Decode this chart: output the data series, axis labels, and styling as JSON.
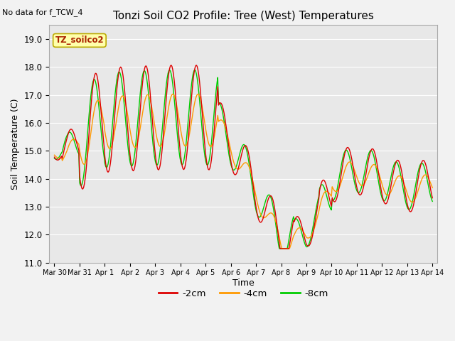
{
  "title": "Tonzi Soil CO2 Profile: Tree (West) Temperatures",
  "xlabel": "Time",
  "ylabel": "Soil Temperature (C)",
  "no_data_label": "No data for f_TCW_4",
  "site_label": "TZ_soilco2",
  "ylim": [
    11.0,
    19.5
  ],
  "yticks": [
    11.0,
    12.0,
    13.0,
    14.0,
    15.0,
    16.0,
    17.0,
    18.0,
    19.0
  ],
  "bg_color": "#e8e8e8",
  "line_colors": {
    "2cm": "#dd0000",
    "4cm": "#ff9900",
    "8cm": "#00cc00"
  },
  "legend_labels": [
    "-2cm",
    "-4cm",
    "-8cm"
  ],
  "x_tick_labels": [
    "Mar 30",
    "Mar 31",
    "Apr 1",
    "Apr 2",
    "Apr 3",
    "Apr 4",
    "Apr 5",
    "Apr 6",
    "Apr 7",
    "Apr 8",
    "Apr 9",
    "Apr 10",
    "Apr 11",
    "Apr 12",
    "Apr 13",
    "Apr 14"
  ],
  "num_points": 480
}
